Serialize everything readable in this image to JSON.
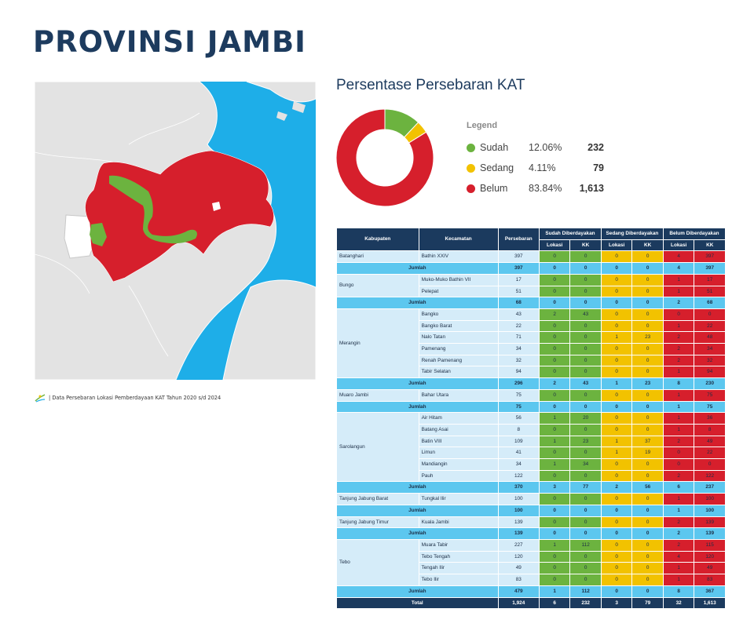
{
  "title": "PROVINSI JAMBI",
  "source_note": "| Data Persebaran Lokasi Pemberdayaan KAT Tahun 2020 s/d 2024",
  "chart_title": "Persentase Persebaran KAT",
  "chart_data": {
    "type": "pie",
    "legend_title": "Legend",
    "series": [
      {
        "name": "Sudah",
        "percent": "12.06%",
        "count": "232",
        "value": 12.06,
        "color": "#6cb33f"
      },
      {
        "name": "Sedang",
        "percent": "4.11%",
        "count": "79",
        "value": 4.11,
        "color": "#f2c200"
      },
      {
        "name": "Belum",
        "percent": "83.84%",
        "count": "1,613",
        "value": 83.84,
        "color": "#d61f2c"
      }
    ]
  },
  "colors": {
    "navy": "#1b3a5e",
    "green": "#6cb33f",
    "yellow": "#f2c200",
    "red": "#d61f2c",
    "sum_row": "#5cc7ef",
    "cell": "#d5ecf9",
    "sea": "#1eaee8",
    "land": "#e3e3e3"
  },
  "table": {
    "headers": {
      "kabupaten": "Kabupaten",
      "kecamatan": "Kecamatan",
      "persebaran": "Persebaran",
      "sudah": "Sudah Diberdayakan",
      "sedang": "Sedang Diberdayakan",
      "belum": "Belum Diberdayakan",
      "lokasi": "Lokasi",
      "kk": "KK"
    },
    "groups": [
      {
        "kabupaten": "Batanghari",
        "rows": [
          [
            "Bathin XXIV",
            "397",
            "0",
            "0",
            "0",
            "0",
            "4",
            "397"
          ]
        ],
        "sum": [
          "397",
          "0",
          "0",
          "0",
          "0",
          "4",
          "397"
        ]
      },
      {
        "kabupaten": "Bungo",
        "rows": [
          [
            "Muko-Muko Bathin VII",
            "17",
            "0",
            "0",
            "0",
            "0",
            "1",
            "17"
          ],
          [
            "Pelepat",
            "51",
            "0",
            "0",
            "0",
            "0",
            "1",
            "51"
          ]
        ],
        "sum": [
          "68",
          "0",
          "0",
          "0",
          "0",
          "2",
          "68"
        ]
      },
      {
        "kabupaten": "Merangin",
        "rows": [
          [
            "Bangko",
            "43",
            "2",
            "43",
            "0",
            "0",
            "0",
            "0"
          ],
          [
            "Bangko Barat",
            "22",
            "0",
            "0",
            "0",
            "0",
            "1",
            "22"
          ],
          [
            "Nalo Tatan",
            "71",
            "0",
            "0",
            "1",
            "23",
            "2",
            "48"
          ],
          [
            "Pamenang",
            "34",
            "0",
            "0",
            "0",
            "0",
            "2",
            "34"
          ],
          [
            "Renah Pamenang",
            "32",
            "0",
            "0",
            "0",
            "0",
            "2",
            "32"
          ],
          [
            "Tabir Selatan",
            "94",
            "0",
            "0",
            "0",
            "0",
            "1",
            "94"
          ]
        ],
        "sum": [
          "296",
          "2",
          "43",
          "1",
          "23",
          "8",
          "230"
        ]
      },
      {
        "kabupaten": "Muaro Jambi",
        "rows": [
          [
            "Bahar Utara",
            "75",
            "0",
            "0",
            "0",
            "0",
            "1",
            "75"
          ]
        ],
        "sum": [
          "75",
          "0",
          "0",
          "0",
          "0",
          "1",
          "75"
        ]
      },
      {
        "kabupaten": "Sarolangun",
        "rows": [
          [
            "Air Hitam",
            "56",
            "1",
            "20",
            "0",
            "0",
            "1",
            "36"
          ],
          [
            "Batang Asai",
            "8",
            "0",
            "0",
            "0",
            "0",
            "1",
            "8"
          ],
          [
            "Batin VIII",
            "109",
            "1",
            "23",
            "1",
            "37",
            "2",
            "49"
          ],
          [
            "Limun",
            "41",
            "0",
            "0",
            "1",
            "19",
            "0",
            "22"
          ],
          [
            "Mandiangin",
            "34",
            "1",
            "34",
            "0",
            "0",
            "0",
            "0"
          ],
          [
            "Pauh",
            "122",
            "0",
            "0",
            "0",
            "0",
            "2",
            "122"
          ]
        ],
        "sum": [
          "370",
          "3",
          "77",
          "2",
          "56",
          "6",
          "237"
        ]
      },
      {
        "kabupaten": "Tanjung Jabung Barat",
        "rows": [
          [
            "Tungkal Ilir",
            "100",
            "0",
            "0",
            "0",
            "0",
            "1",
            "100"
          ]
        ],
        "sum": [
          "100",
          "0",
          "0",
          "0",
          "0",
          "1",
          "100"
        ]
      },
      {
        "kabupaten": "Tanjung Jabung Timur",
        "rows": [
          [
            "Kuala Jambi",
            "139",
            "0",
            "0",
            "0",
            "0",
            "2",
            "139"
          ]
        ],
        "sum": [
          "139",
          "0",
          "0",
          "0",
          "0",
          "2",
          "139"
        ]
      },
      {
        "kabupaten": "Tebo",
        "rows": [
          [
            "Muara Tabir",
            "227",
            "1",
            "112",
            "0",
            "0",
            "2",
            "115"
          ],
          [
            "Tebo Tengah",
            "120",
            "0",
            "0",
            "0",
            "0",
            "4",
            "120"
          ],
          [
            "Tengah Ilir",
            "49",
            "0",
            "0",
            "0",
            "0",
            "1",
            "49"
          ],
          [
            "Tebo Ilir",
            "83",
            "0",
            "0",
            "0",
            "0",
            "1",
            "83"
          ]
        ],
        "sum": [
          "479",
          "1",
          "112",
          "0",
          "0",
          "8",
          "367"
        ]
      }
    ],
    "sum_label": "Jumlah",
    "total_label": "Total",
    "total": [
      "1,924",
      "6",
      "232",
      "3",
      "79",
      "32",
      "1,613"
    ]
  }
}
